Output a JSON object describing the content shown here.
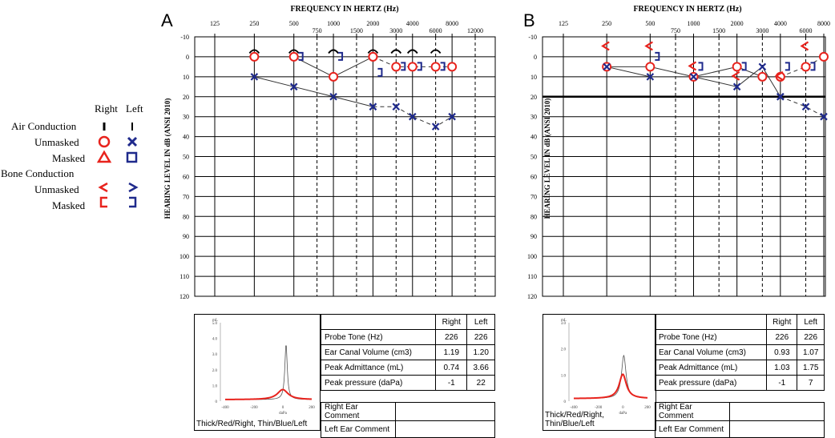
{
  "legend": {
    "right_label": "Right",
    "left_label": "Left",
    "rows": [
      {
        "label": "Air Conduction",
        "kind": "header"
      },
      {
        "label": "Unmasked",
        "kind": "ac_unmasked"
      },
      {
        "label": "Masked",
        "kind": "ac_masked"
      },
      {
        "label": "Bone Conduction",
        "kind": "header"
      },
      {
        "label": "Unmasked",
        "kind": "bc_unmasked"
      },
      {
        "label": "Masked",
        "kind": "bc_masked"
      }
    ]
  },
  "colors": {
    "right": "#e8231d",
    "left": "#1f2a8c",
    "grid": "#000000"
  },
  "chart_data": [
    {
      "panel": "A",
      "type": "scatter",
      "title": "FREQUENCY IN HERTZ (Hz)",
      "ylabel": "HEARING LEVEL IN dB (ANSI 2010)",
      "x_ticks": [
        {
          "f": 125,
          "label": "125",
          "row": "top"
        },
        {
          "f": 250,
          "label": "250",
          "row": "top"
        },
        {
          "f": 500,
          "label": "500",
          "row": "top"
        },
        {
          "f": 750,
          "label": "750",
          "row": "bottom"
        },
        {
          "f": 1000,
          "label": "1000",
          "row": "top"
        },
        {
          "f": 1500,
          "label": "1500",
          "row": "bottom"
        },
        {
          "f": 2000,
          "label": "2000",
          "row": "top"
        },
        {
          "f": 3000,
          "label": "3000",
          "row": "bottom"
        },
        {
          "f": 4000,
          "label": "4000",
          "row": "top"
        },
        {
          "f": 6000,
          "label": "6000",
          "row": "bottom"
        },
        {
          "f": 8000,
          "label": "8000",
          "row": "top"
        },
        {
          "f": 12000,
          "label": "12000",
          "row": "bottom"
        }
      ],
      "x_range": [
        125,
        12000
      ],
      "ylim": [
        -10,
        120
      ],
      "y_ticks": [
        "-10",
        "0",
        "10",
        "20",
        "30",
        "40",
        "50",
        "60",
        "70",
        "80",
        "90",
        "100",
        "110",
        "120"
      ],
      "thick_line_db": null,
      "series": [
        {
          "symbol": "right_ac_unmasked",
          "connect": "solid",
          "points": [
            [
              250,
              0
            ],
            [
              500,
              0
            ],
            [
              1000,
              10
            ],
            [
              2000,
              0
            ]
          ]
        },
        {
          "symbol": "right_ac_unmasked",
          "connect": "dashed",
          "points": [
            [
              2000,
              0
            ],
            [
              3000,
              5
            ],
            [
              4000,
              5
            ],
            [
              6000,
              5
            ],
            [
              8000,
              5
            ]
          ]
        },
        {
          "symbol": "left_ac_unmasked",
          "connect": "solid",
          "points": [
            [
              250,
              10
            ],
            [
              500,
              15
            ],
            [
              1000,
              20
            ],
            [
              2000,
              25
            ]
          ]
        },
        {
          "symbol": "left_ac_unmasked",
          "connect": "dashed",
          "points": [
            [
              2000,
              25
            ],
            [
              3000,
              25
            ],
            [
              4000,
              30
            ],
            [
              6000,
              35
            ],
            [
              8000,
              30
            ]
          ]
        },
        {
          "symbol": "right_arc",
          "connect": "none",
          "points": [
            [
              250,
              -3
            ],
            [
              1000,
              -3
            ],
            [
              2000,
              -3
            ],
            [
              3000,
              -3
            ],
            [
              4000,
              -3
            ]
          ]
        },
        {
          "symbol": "left_arc",
          "connect": "none",
          "points": [
            [
              500,
              -3
            ],
            [
              1000,
              -3
            ],
            [
              3000,
              -3
            ],
            [
              4000,
              -3
            ],
            [
              6000,
              -3
            ]
          ]
        },
        {
          "symbol": "left_bc_masked",
          "connect": "none",
          "points": [
            [
              500,
              0
            ],
            [
              1000,
              0
            ],
            [
              2000,
              8
            ],
            [
              3000,
              5
            ],
            [
              4000,
              5
            ],
            [
              6000,
              5
            ]
          ]
        }
      ],
      "tympanogram": {
        "yaxis_label": "mL",
        "xaxis_label": "daPa",
        "x_range": [
          -400,
          200
        ],
        "y_range": [
          0,
          5
        ],
        "y_ticks": [
          "0",
          "1.0",
          "2.0",
          "3.0",
          "4.0",
          "5.0"
        ],
        "x_ticks": [
          "-400",
          "-200",
          "0",
          "200"
        ],
        "right_peak": {
          "pressure": -1,
          "admittance": 0.74,
          "width": 45
        },
        "left_peak": {
          "pressure": 22,
          "admittance": 3.66,
          "width": 10
        },
        "caption": "Thick/Red/Right, Thin/Blue/Left"
      },
      "table": {
        "headers": [
          "",
          "Right",
          "Left"
        ],
        "rows": [
          [
            "Probe Tone (Hz)",
            "226",
            "226"
          ],
          [
            "Ear Canal Volume (cm3)",
            "1.19",
            "1.20"
          ],
          [
            "Peak Admittance (mL)",
            "0.74",
            "3.66"
          ],
          [
            "Peak pressure (daPa)",
            "-1",
            "22"
          ]
        ],
        "comments": [
          "Right Ear Comment",
          "Left Ear Comment"
        ]
      }
    },
    {
      "panel": "B",
      "type": "scatter",
      "title": "FREQUENCY IN HERTZ (Hz)",
      "ylabel": "HEARING LEVEL IN dB (ANSI 2010)",
      "x_ticks": [
        {
          "f": 125,
          "label": "125",
          "row": "top"
        },
        {
          "f": 250,
          "label": "250",
          "row": "top"
        },
        {
          "f": 500,
          "label": "500",
          "row": "top"
        },
        {
          "f": 750,
          "label": "750",
          "row": "bottom"
        },
        {
          "f": 1000,
          "label": "1000",
          "row": "top"
        },
        {
          "f": 1500,
          "label": "1500",
          "row": "bottom"
        },
        {
          "f": 2000,
          "label": "2000",
          "row": "top"
        },
        {
          "f": 3000,
          "label": "3000",
          "row": "bottom"
        },
        {
          "f": 4000,
          "label": "4000",
          "row": "top"
        },
        {
          "f": 6000,
          "label": "6000",
          "row": "bottom"
        },
        {
          "f": 8000,
          "label": "8000",
          "row": "top"
        }
      ],
      "x_range": [
        125,
        8000
      ],
      "ylim": [
        -10,
        120
      ],
      "y_ticks": [
        "-10",
        "0",
        "10",
        "20",
        "30",
        "40",
        "50",
        "60",
        "70",
        "80",
        "90",
        "100",
        "110",
        "120"
      ],
      "thick_line_db": 20,
      "series": [
        {
          "symbol": "right_ac_unmasked",
          "connect": "solid",
          "points": [
            [
              250,
              5
            ],
            [
              500,
              5
            ],
            [
              1000,
              10
            ],
            [
              2000,
              5
            ],
            [
              3000,
              10
            ],
            [
              4000,
              10
            ]
          ]
        },
        {
          "symbol": "right_ac_unmasked",
          "connect": "dashed",
          "points": [
            [
              4000,
              10
            ],
            [
              6000,
              5
            ],
            [
              8000,
              0
            ]
          ]
        },
        {
          "symbol": "left_ac_unmasked",
          "connect": "solid",
          "points": [
            [
              250,
              5
            ],
            [
              500,
              10
            ],
            [
              1000,
              10
            ],
            [
              2000,
              15
            ],
            [
              3000,
              5
            ],
            [
              4000,
              20
            ]
          ]
        },
        {
          "symbol": "left_ac_unmasked",
          "connect": "dashed",
          "points": [
            [
              4000,
              20
            ],
            [
              6000,
              25
            ],
            [
              8000,
              30
            ]
          ]
        },
        {
          "symbol": "right_bc_unmasked",
          "connect": "none",
          "points": [
            [
              250,
              -5
            ],
            [
              500,
              -5
            ],
            [
              1000,
              5
            ],
            [
              2000,
              10
            ],
            [
              4000,
              10
            ],
            [
              6000,
              -5
            ]
          ]
        },
        {
          "symbol": "left_bc_masked",
          "connect": "none",
          "points": [
            [
              500,
              0
            ],
            [
              1000,
              5
            ],
            [
              2000,
              5
            ],
            [
              4000,
              5
            ],
            [
              6000,
              5
            ]
          ]
        }
      ],
      "tympanogram": {
        "yaxis_label": "mL",
        "xaxis_label": "daPa",
        "x_range": [
          -400,
          200
        ],
        "y_range": [
          0,
          3
        ],
        "y_ticks": [
          "0",
          "1.0",
          "2.0",
          "3.0"
        ],
        "x_ticks": [
          "-400",
          "-200",
          "0",
          "200"
        ],
        "right_peak": {
          "pressure": -1,
          "admittance": 1.03,
          "width": 35
        },
        "left_peak": {
          "pressure": 7,
          "admittance": 1.75,
          "width": 22
        },
        "caption": "Thick/Red/Right, Thin/Blue/Left"
      },
      "table": {
        "headers": [
          "",
          "Right",
          "Left"
        ],
        "rows": [
          [
            "Probe Tone (Hz)",
            "226",
            "226"
          ],
          [
            "Ear Canal Volume (cm3)",
            "0.93",
            "1.07"
          ],
          [
            "Peak Admittance (mL)",
            "1.03",
            "1.75"
          ],
          [
            "Peak pressure (daPa)",
            "-1",
            "7"
          ]
        ],
        "comments": [
          "Right Ear Comment",
          "Left Ear Comment"
        ]
      }
    }
  ]
}
